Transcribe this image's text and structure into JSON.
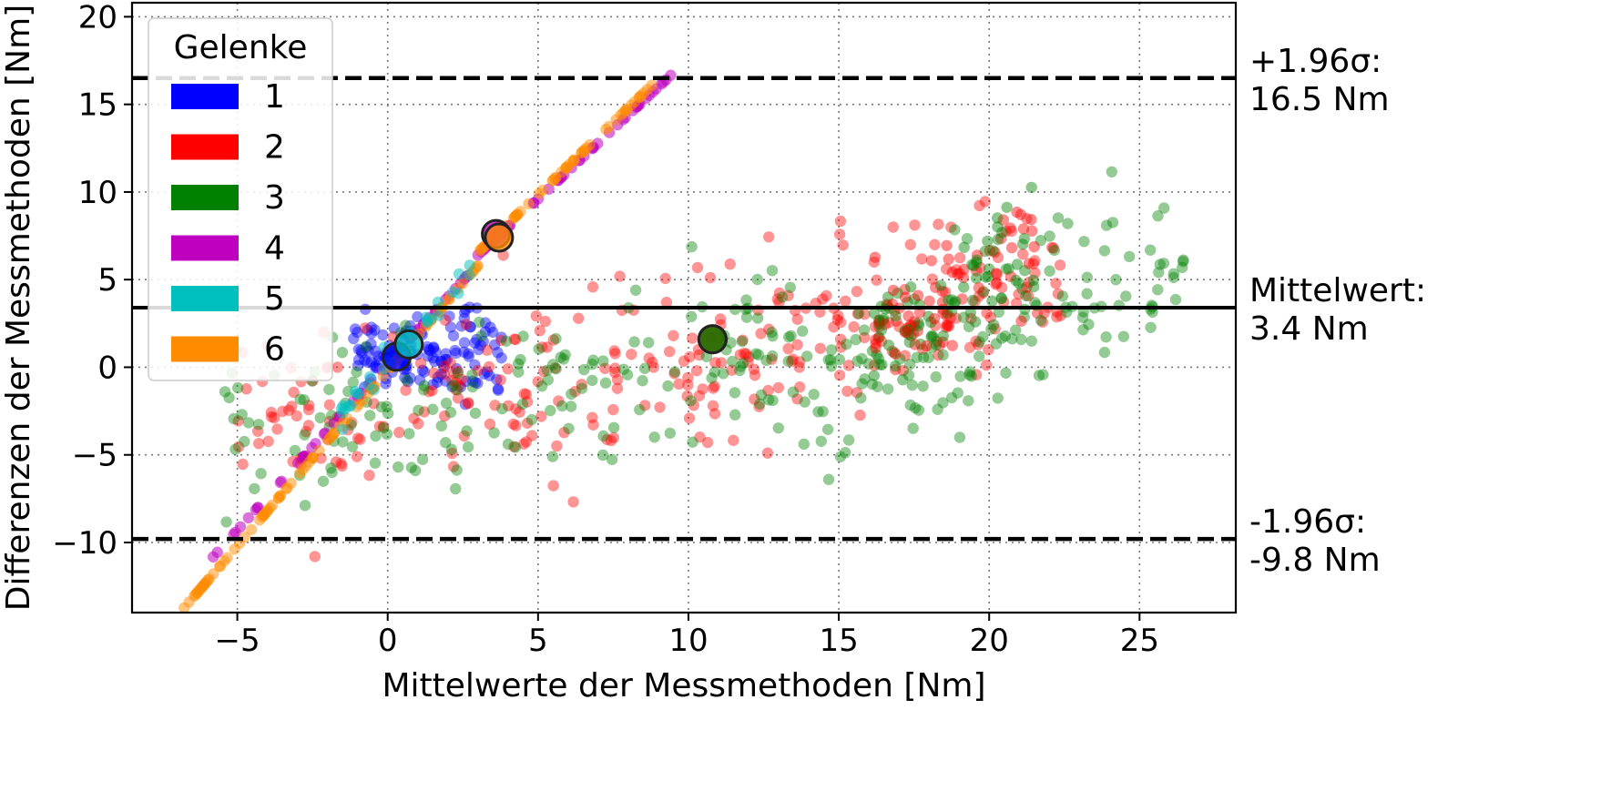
{
  "chart_data": {
    "type": "scatter",
    "xlabel": "Mittelwerte der Messmethoden [Nm]",
    "ylabel": "Differenzen der Messmethoden [Nm]",
    "xlim": [
      -8.5,
      28.2
    ],
    "ylim": [
      -14.0,
      20.8
    ],
    "xticks": [
      -5,
      0,
      5,
      10,
      15,
      20,
      25
    ],
    "yticks": [
      -10,
      -5,
      0,
      5,
      10,
      15,
      20
    ],
    "xtick_labels": [
      "−5",
      "0",
      "5",
      "10",
      "15",
      "20",
      "25"
    ],
    "ytick_labels": [
      "−10",
      "−5",
      "0",
      "5",
      "10",
      "15",
      "20"
    ],
    "grid": true,
    "grid_style": "dotted",
    "legend": {
      "title": "Gelenke",
      "placement": "upper-left"
    },
    "series": [
      {
        "name": "1",
        "color": "#0000ff",
        "mean_point": [
          0.3,
          0.6
        ]
      },
      {
        "name": "2",
        "color": "#ff0000",
        "mean_point": [
          10.8,
          1.6
        ]
      },
      {
        "name": "3",
        "color": "#008000",
        "mean_point": [
          10.8,
          1.6
        ]
      },
      {
        "name": "4",
        "color": "#bf00bf",
        "mean_point": [
          3.6,
          7.6
        ]
      },
      {
        "name": "5",
        "color": "#00bfbf",
        "mean_point": [
          0.7,
          1.3
        ]
      },
      {
        "name": "6",
        "color": "#ff8c00",
        "mean_point": [
          3.7,
          7.4
        ]
      }
    ],
    "reference_lines": [
      {
        "value": 16.5,
        "style": "dashed",
        "label_top": "+1.96σ:",
        "label_bottom": "16.5 Nm"
      },
      {
        "value": 3.4,
        "style": "solid",
        "label_top": "Mittelwert:",
        "label_bottom": "3.4 Nm"
      },
      {
        "value": -9.8,
        "style": "dashed",
        "label_top": "-1.96σ:",
        "label_bottom": "-9.8 Nm"
      }
    ]
  }
}
